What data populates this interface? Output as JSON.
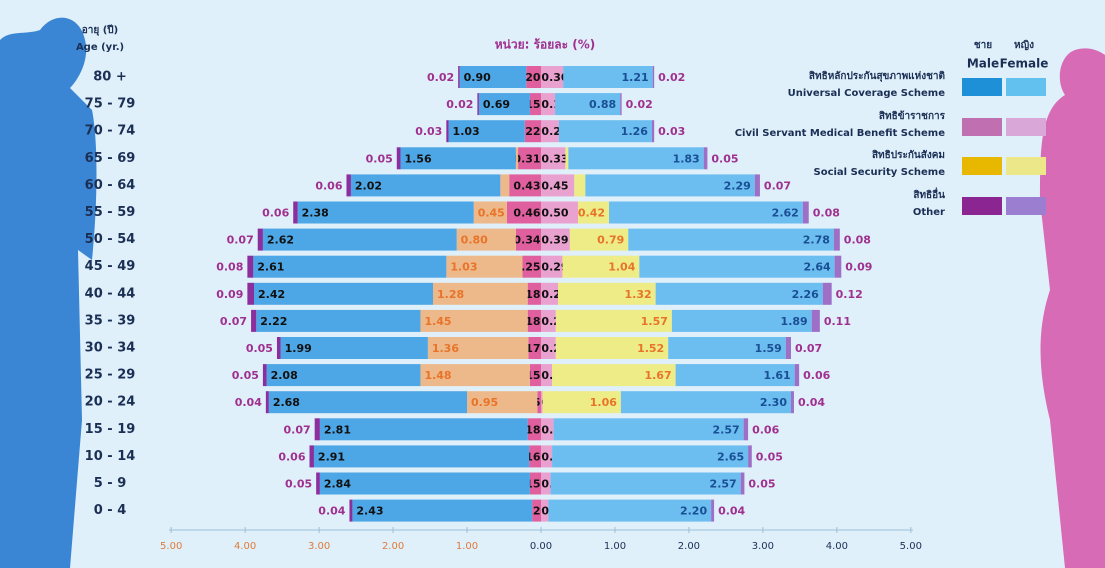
{
  "chart_data": {
    "type": "pyramid",
    "y_axis_title_th": "อายุ (ปี)",
    "y_axis_title": "Age (yr.)",
    "unit_label": "หน่วย: ร้อยละ (%)",
    "legend_headers": {
      "male_th": "ชาย",
      "male": "Male",
      "female_th": "หญิง",
      "female": "Female"
    },
    "categories": [
      "80 +",
      "75 - 79",
      "70 - 74",
      "65 - 69",
      "60 - 64",
      "55 - 59",
      "50 - 54",
      "45 - 49",
      "40 - 44",
      "35 - 39",
      "30 - 34",
      "25 - 29",
      "20 - 24",
      "15 - 19",
      "10 - 14",
      "5 - 9",
      "0 - 4"
    ],
    "male_series": [
      {
        "name_th": "สิทธิหลักประกันสุขภาพแห่งชาติ",
        "name": "Universal Coverage Scheme",
        "color": "#4da6e6",
        "legend_color": "#1e90d8",
        "label_color": "#111111",
        "values": [
          0.9,
          0.69,
          1.03,
          1.56,
          2.02,
          2.38,
          2.62,
          2.61,
          2.42,
          2.22,
          1.99,
          2.08,
          2.68,
          2.81,
          2.91,
          2.84,
          2.43
        ],
        "value_labels": [
          "0.90",
          "0.69",
          "1.03",
          "1.56",
          "2.02",
          "2.38",
          "2.62",
          "2.61",
          "2.42",
          "2.22",
          "1.99",
          "2.08",
          "2.68",
          "2.81",
          "2.91",
          "2.84",
          "2.43"
        ]
      },
      {
        "name_th": "สิทธิข้าราชการ",
        "name": "Civil Servant Medical Benefit Scheme",
        "color": "#e0609f",
        "legend_color": "#c06fb0",
        "label_color": "#111111",
        "values": [
          0.2,
          0.15,
          0.22,
          0.31,
          0.43,
          0.46,
          0.34,
          0.25,
          0.18,
          0.18,
          0.17,
          0.15,
          0.05,
          0.18,
          0.16,
          0.15,
          0.12
        ],
        "value_labels": [
          "0.20",
          "0.15",
          "0.22",
          "0.31",
          "0.43",
          "0.46",
          "0.34",
          "0.25",
          "0.18",
          "0.18",
          "0.17",
          "0.15",
          "0.05",
          "0.18",
          "0.16",
          "0.15",
          "0.12"
        ]
      },
      {
        "name_th": "สิทธิประกันสังคม",
        "name": "Social Security Scheme",
        "color": "#edb98a",
        "legend_color": "#e8b800",
        "label_color": "#e8742a",
        "values": [
          0,
          0,
          0,
          0.03,
          0.12,
          0.45,
          0.8,
          1.03,
          1.28,
          1.45,
          1.36,
          1.48,
          0.95,
          0,
          0,
          0,
          0
        ],
        "value_labels": [
          null,
          null,
          null,
          null,
          null,
          "0.45",
          "0.80",
          "1.03",
          "1.28",
          "1.45",
          "1.36",
          "1.48",
          "0.95",
          null,
          null,
          null,
          null
        ]
      },
      {
        "name_th": "สิทธิอื่น",
        "name": "Other",
        "color": "#8b2f9e",
        "legend_color": "#8a2591",
        "label_color": "#a0308f",
        "values": [
          0.02,
          0.02,
          0.03,
          0.05,
          0.06,
          0.06,
          0.07,
          0.08,
          0.09,
          0.07,
          0.05,
          0.05,
          0.04,
          0.07,
          0.06,
          0.05,
          0.04
        ],
        "value_labels": [
          "0.02",
          "0.02",
          "0.03",
          "0.05",
          "0.06",
          "0.06",
          "0.07",
          "0.08",
          "0.09",
          "0.07",
          "0.05",
          "0.05",
          "0.04",
          "0.07",
          "0.06",
          "0.05",
          "0.04"
        ]
      }
    ],
    "female_series": [
      {
        "color": "#6cbdf0",
        "legend_color": "#62c1ee",
        "label_color": "#1a4f95",
        "values": [
          1.21,
          0.88,
          1.26,
          1.83,
          2.29,
          2.62,
          2.78,
          2.64,
          2.26,
          1.89,
          1.59,
          1.61,
          2.3,
          2.57,
          2.65,
          2.57,
          2.2
        ],
        "value_labels": [
          "1.21",
          "0.88",
          "1.26",
          "1.83",
          "2.29",
          "2.62",
          "2.78",
          "2.64",
          "2.26",
          "1.89",
          "1.59",
          "1.61",
          "2.30",
          "2.57",
          "2.65",
          "2.57",
          "2.20"
        ]
      },
      {
        "color": "#e9a1cf",
        "legend_color": "#d9a8d8",
        "label_color": "#111111",
        "values": [
          0.3,
          0.19,
          0.24,
          0.33,
          0.45,
          0.5,
          0.39,
          0.29,
          0.23,
          0.2,
          0.2,
          0.15,
          0.02,
          0.17,
          0.15,
          0.13,
          0.1
        ],
        "value_labels": [
          "0.30",
          "0.19",
          "0.24",
          "0.33",
          "0.45",
          "0.50",
          "0.39",
          "0.29",
          "0.23",
          "0.20",
          "0.20",
          "0.15",
          "0.02",
          "0.17",
          "0.15",
          "0.13",
          "0.10"
        ]
      },
      {
        "color": "#eeec86",
        "legend_color": "#ece88a",
        "label_color": "#e8742a",
        "values": [
          0,
          0,
          0,
          0.04,
          0.15,
          0.42,
          0.79,
          1.04,
          1.32,
          1.57,
          1.52,
          1.67,
          1.06,
          0,
          0,
          0,
          0
        ],
        "value_labels": [
          null,
          null,
          null,
          null,
          null,
          "0.42",
          "0.79",
          "1.04",
          "1.32",
          "1.57",
          "1.52",
          "1.67",
          "1.06",
          null,
          null,
          null,
          null
        ]
      },
      {
        "color": "#9d6fc6",
        "legend_color": "#9b7ed0",
        "label_color": "#a0308f",
        "values": [
          0.02,
          0.02,
          0.03,
          0.05,
          0.07,
          0.08,
          0.08,
          0.09,
          0.12,
          0.11,
          0.07,
          0.06,
          0.04,
          0.06,
          0.05,
          0.05,
          0.04
        ],
        "value_labels": [
          "0.02",
          "0.02",
          "0.03",
          "0.05",
          "0.07",
          "0.08",
          "0.08",
          "0.09",
          "0.12",
          "0.11",
          "0.07",
          "0.06",
          "0.04",
          "0.06",
          "0.05",
          "0.05",
          "0.04"
        ]
      }
    ],
    "xlim": [
      -5.3,
      5.3
    ],
    "xticks": [
      {
        "value": -5,
        "label": "5.00"
      },
      {
        "value": -4,
        "label": "4.00"
      },
      {
        "value": -3,
        "label": "3.00"
      },
      {
        "value": -2,
        "label": "2.00"
      },
      {
        "value": -1,
        "label": "1.00"
      },
      {
        "value": 0,
        "label": "0.00"
      },
      {
        "value": 1,
        "label": "1.00"
      },
      {
        "value": 2,
        "label": "2.00"
      },
      {
        "value": 3,
        "label": "3.00"
      },
      {
        "value": 4,
        "label": "4.00"
      },
      {
        "value": 5,
        "label": "5.00"
      }
    ]
  }
}
